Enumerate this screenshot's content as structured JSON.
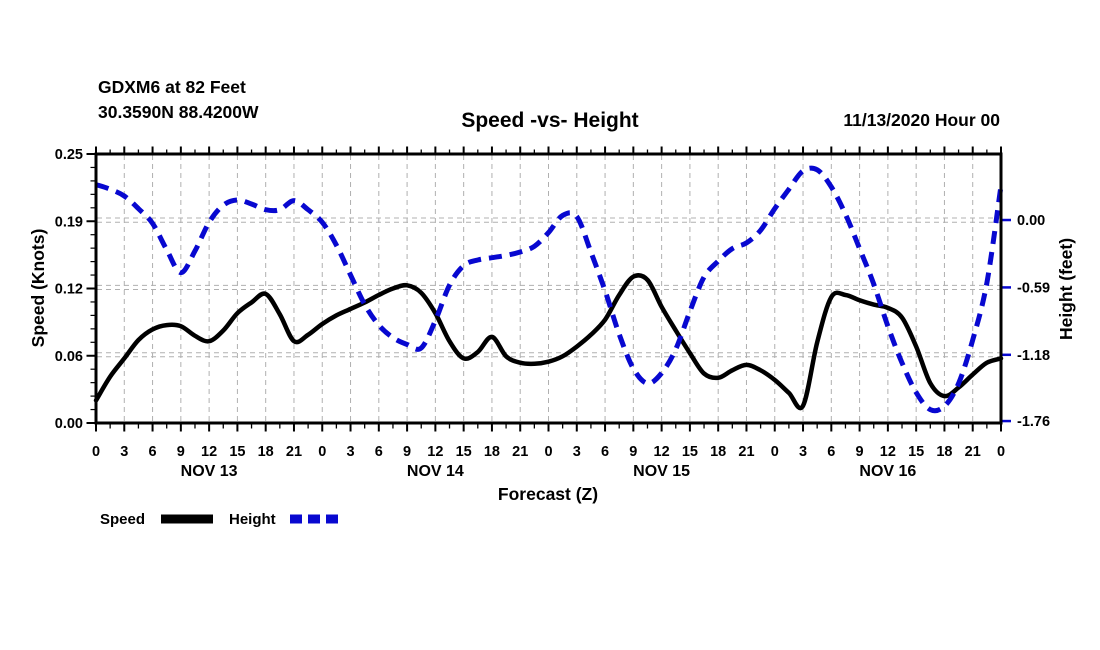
{
  "header": {
    "station": "GDXM6 at 82 Feet",
    "coordinates": "30.3590N 88.4200W",
    "title": "Speed -vs- Height",
    "datetime": "11/13/2020 Hour 00"
  },
  "legend": {
    "speed": "Speed",
    "height": "Height"
  },
  "chart_data": {
    "type": "line",
    "title": "Speed -vs- Height",
    "xlabel": "Forecast (Z)",
    "x_min_hours": 0,
    "x_max_hours": 96,
    "x_major_tick_hours": 3,
    "x_hour_labels_cycle": [
      "0",
      "3",
      "6",
      "9",
      "12",
      "15",
      "18",
      "21"
    ],
    "day_labels": [
      "NOV 13",
      "NOV 14",
      "NOV 15",
      "NOV 16"
    ],
    "grid_on": true,
    "grid_color": "#b0b0b0",
    "legend_position": "bottom-left",
    "y_left": {
      "label": "Speed (Knots)",
      "min": 0.0,
      "max": 0.25,
      "ticks": [
        0.0,
        0.0625,
        0.125,
        0.1875,
        0.25
      ],
      "tick_labels": [
        "0.00",
        "0.06",
        "0.12",
        "0.19",
        "0.25"
      ]
    },
    "y_right": {
      "label": "Height (feet)",
      "min": -1.777,
      "max": 0.578,
      "ticks": [
        0.0,
        -0.59,
        -1.18,
        -1.76
      ],
      "tick_labels": [
        "0.00",
        "-0.59",
        "-1.18",
        "-1.76"
      ]
    },
    "grid": {
      "h_left": [
        0.0625,
        0.125,
        0.1875
      ],
      "h_right": [
        -1.18,
        -0.59,
        0.0
      ]
    },
    "series": [
      {
        "name": "Speed",
        "axis": "left",
        "units": "knots",
        "color": "#000000",
        "line_style": "solid",
        "points": [
          [
            0,
            0.021
          ],
          [
            1.5,
            0.043
          ],
          [
            3,
            0.06
          ],
          [
            4.5,
            0.077
          ],
          [
            6,
            0.087
          ],
          [
            7.5,
            0.091
          ],
          [
            9,
            0.09
          ],
          [
            10.5,
            0.081
          ],
          [
            12,
            0.076
          ],
          [
            13.5,
            0.086
          ],
          [
            15,
            0.102
          ],
          [
            16.5,
            0.112
          ],
          [
            18,
            0.12
          ],
          [
            19.5,
            0.101
          ],
          [
            21,
            0.076
          ],
          [
            22.5,
            0.082
          ],
          [
            24,
            0.092
          ],
          [
            25.5,
            0.1
          ],
          [
            27,
            0.106
          ],
          [
            28.5,
            0.112
          ],
          [
            30,
            0.119
          ],
          [
            31.5,
            0.125
          ],
          [
            33,
            0.128
          ],
          [
            34.5,
            0.121
          ],
          [
            36,
            0.102
          ],
          [
            37.5,
            0.076
          ],
          [
            39,
            0.06
          ],
          [
            40.5,
            0.066
          ],
          [
            42,
            0.08
          ],
          [
            43.5,
            0.062
          ],
          [
            45,
            0.056
          ],
          [
            46.5,
            0.055
          ],
          [
            48,
            0.057
          ],
          [
            49.5,
            0.062
          ],
          [
            51,
            0.071
          ],
          [
            52.5,
            0.082
          ],
          [
            54,
            0.096
          ],
          [
            55.5,
            0.119
          ],
          [
            57,
            0.136
          ],
          [
            58.5,
            0.133
          ],
          [
            60,
            0.108
          ],
          [
            61.5,
            0.086
          ],
          [
            63,
            0.065
          ],
          [
            64.5,
            0.046
          ],
          [
            66,
            0.042
          ],
          [
            67.5,
            0.049
          ],
          [
            69,
            0.054
          ],
          [
            70.5,
            0.049
          ],
          [
            72,
            0.04
          ],
          [
            73.5,
            0.028
          ],
          [
            75,
            0.016
          ],
          [
            76.5,
            0.075
          ],
          [
            78,
            0.117
          ],
          [
            79.5,
            0.119
          ],
          [
            81,
            0.114
          ],
          [
            82.5,
            0.11
          ],
          [
            84,
            0.107
          ],
          [
            85.5,
            0.098
          ],
          [
            87,
            0.071
          ],
          [
            88.5,
            0.037
          ],
          [
            90,
            0.025
          ],
          [
            91.5,
            0.033
          ],
          [
            93,
            0.045
          ],
          [
            94.5,
            0.056
          ],
          [
            96,
            0.06
          ]
        ]
      },
      {
        "name": "Height",
        "axis": "right",
        "units": "feet",
        "color": "#0808d0",
        "line_style": "dashed",
        "points": [
          [
            0,
            0.31
          ],
          [
            1.5,
            0.27
          ],
          [
            3,
            0.21
          ],
          [
            4.5,
            0.1
          ],
          [
            6,
            -0.03
          ],
          [
            7.5,
            -0.26
          ],
          [
            9,
            -0.46
          ],
          [
            10.5,
            -0.27
          ],
          [
            12,
            -0.02
          ],
          [
            13.5,
            0.13
          ],
          [
            15,
            0.175
          ],
          [
            16.5,
            0.14
          ],
          [
            18,
            0.09
          ],
          [
            19.5,
            0.09
          ],
          [
            21,
            0.17
          ],
          [
            22.5,
            0.09
          ],
          [
            24,
            -0.02
          ],
          [
            25.5,
            -0.22
          ],
          [
            27,
            -0.48
          ],
          [
            28.5,
            -0.74
          ],
          [
            30,
            -0.92
          ],
          [
            31.5,
            -1.03
          ],
          [
            33,
            -1.09
          ],
          [
            34.5,
            -1.12
          ],
          [
            36,
            -0.88
          ],
          [
            37.5,
            -0.57
          ],
          [
            39,
            -0.4
          ],
          [
            40.5,
            -0.35
          ],
          [
            42,
            -0.33
          ],
          [
            43.5,
            -0.31
          ],
          [
            45,
            -0.28
          ],
          [
            46.5,
            -0.23
          ],
          [
            48,
            -0.11
          ],
          [
            49.5,
            0.04
          ],
          [
            51,
            0.03
          ],
          [
            52.5,
            -0.28
          ],
          [
            54,
            -0.62
          ],
          [
            55.5,
            -1.0
          ],
          [
            57,
            -1.3
          ],
          [
            58.5,
            -1.43
          ],
          [
            60,
            -1.34
          ],
          [
            61.5,
            -1.13
          ],
          [
            63,
            -0.8
          ],
          [
            64.5,
            -0.5
          ],
          [
            66,
            -0.36
          ],
          [
            67.5,
            -0.25
          ],
          [
            69,
            -0.2
          ],
          [
            70.5,
            -0.09
          ],
          [
            72,
            0.1
          ],
          [
            73.5,
            0.27
          ],
          [
            75,
            0.43
          ],
          [
            76.5,
            0.44
          ],
          [
            78,
            0.29
          ],
          [
            79.5,
            0.05
          ],
          [
            81,
            -0.25
          ],
          [
            82.5,
            -0.56
          ],
          [
            84,
            -0.93
          ],
          [
            85.5,
            -1.25
          ],
          [
            87,
            -1.51
          ],
          [
            88.5,
            -1.66
          ],
          [
            90,
            -1.63
          ],
          [
            91.5,
            -1.43
          ],
          [
            93,
            -1.05
          ],
          [
            94.5,
            -0.55
          ],
          [
            96,
            0.3
          ]
        ]
      }
    ]
  }
}
